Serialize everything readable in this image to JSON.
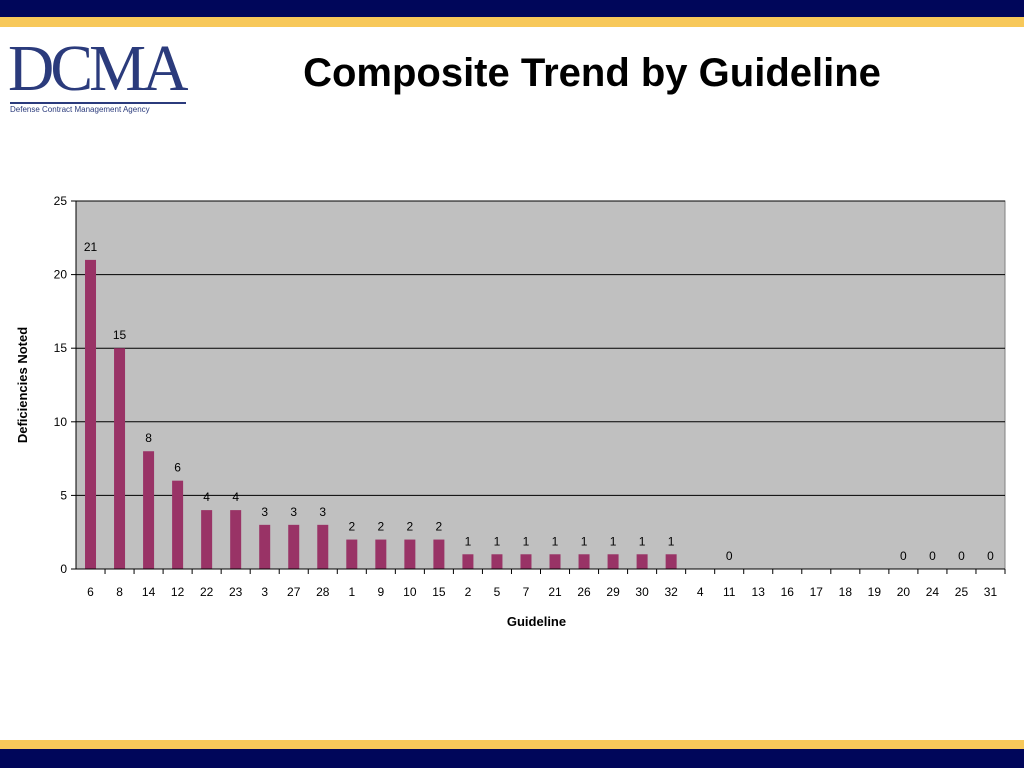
{
  "slide": {
    "title": "Composite Trend by Guideline",
    "logo_text": "DCMA",
    "logo_tagline": "Defense Contract Management Agency"
  },
  "colors": {
    "navy": "#00065a",
    "gold": "#f7c85a",
    "logo": "#2b3b7c",
    "bar": "#993366",
    "plot_background": "#c0c0c0"
  },
  "chart_data": {
    "type": "bar",
    "title": "",
    "xlabel": "Guideline",
    "ylabel": "Deficiencies Noted",
    "ylim": [
      0,
      25
    ],
    "yticks": [
      0,
      5,
      10,
      15,
      20,
      25
    ],
    "grid": true,
    "legend": "none",
    "categories": [
      "6",
      "8",
      "14",
      "12",
      "22",
      "23",
      "3",
      "27",
      "28",
      "1",
      "9",
      "10",
      "15",
      "2",
      "5",
      "7",
      "21",
      "26",
      "29",
      "30",
      "32",
      "4",
      "11",
      "13",
      "16",
      "17",
      "18",
      "19",
      "20",
      "24",
      "25",
      "31"
    ],
    "values": [
      21,
      15,
      8,
      6,
      4,
      4,
      3,
      3,
      3,
      2,
      2,
      2,
      2,
      1,
      1,
      1,
      1,
      1,
      1,
      1,
      1,
      null,
      0,
      null,
      null,
      null,
      null,
      null,
      0,
      0,
      0,
      0
    ]
  }
}
